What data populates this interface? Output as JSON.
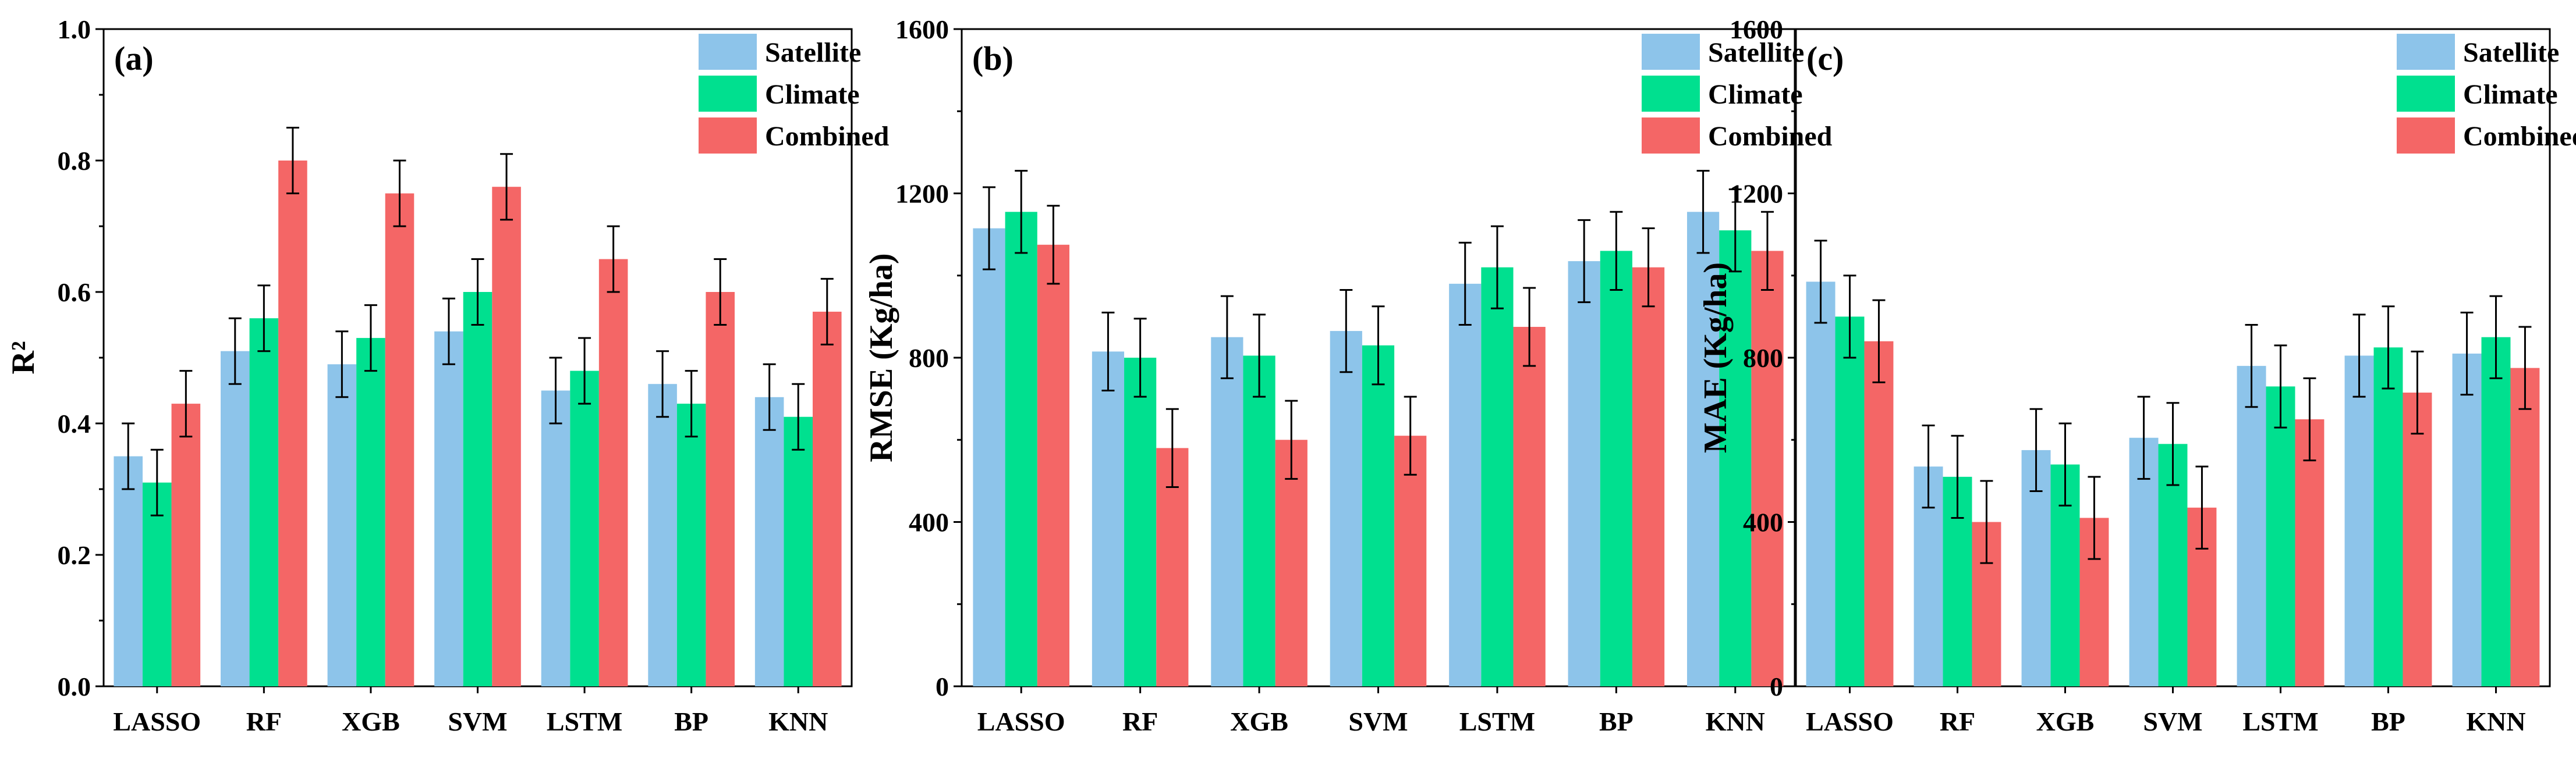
{
  "figure": {
    "colors": {
      "Satellite": "#8DC4EA",
      "Climate": "#00E08F",
      "Combined": "#F46666"
    },
    "legend_entries": [
      "Satellite",
      "Climate",
      "Combined"
    ]
  },
  "chart_data": [
    {
      "type": "bar",
      "panel": "(a)",
      "title": "",
      "xlabel": "",
      "ylabel": "R²",
      "ylim": [
        0,
        1.0
      ],
      "yticks": [
        0.0,
        0.2,
        0.4,
        0.6,
        0.8,
        1.0
      ],
      "ytick_labels": [
        "0.0",
        "0.2",
        "0.4",
        "0.6",
        "0.8",
        "1.0"
      ],
      "legend_position": "top-right",
      "categories": [
        "LASSO",
        "RF",
        "XGB",
        "SVM",
        "LSTM",
        "BP",
        "KNN"
      ],
      "series": [
        {
          "name": "Satellite",
          "values": [
            0.35,
            0.51,
            0.49,
            0.54,
            0.45,
            0.46,
            0.44
          ],
          "errors": [
            0.05,
            0.05,
            0.05,
            0.05,
            0.05,
            0.05,
            0.05
          ]
        },
        {
          "name": "Climate",
          "values": [
            0.31,
            0.56,
            0.53,
            0.6,
            0.48,
            0.43,
            0.41
          ],
          "errors": [
            0.05,
            0.05,
            0.05,
            0.05,
            0.05,
            0.05,
            0.05
          ]
        },
        {
          "name": "Combined",
          "values": [
            0.43,
            0.8,
            0.75,
            0.76,
            0.65,
            0.6,
            0.57
          ],
          "errors": [
            0.05,
            0.05,
            0.05,
            0.05,
            0.05,
            0.05,
            0.05
          ]
        }
      ]
    },
    {
      "type": "bar",
      "panel": "(b)",
      "title": "",
      "xlabel": "",
      "ylabel": "RMSE (Kg/ha)",
      "ylim": [
        0,
        1600
      ],
      "yticks": [
        0,
        400,
        800,
        1200,
        1600
      ],
      "ytick_labels": [
        "0",
        "400",
        "800",
        "1200",
        "1600"
      ],
      "legend_position": "top-right",
      "categories": [
        "LASSO",
        "RF",
        "XGB",
        "SVM",
        "LSTM",
        "BP",
        "KNN"
      ],
      "series": [
        {
          "name": "Satellite",
          "values": [
            1115,
            815,
            850,
            865,
            980,
            1035,
            1155
          ],
          "errors": [
            100,
            95,
            100,
            100,
            100,
            100,
            100
          ]
        },
        {
          "name": "Climate",
          "values": [
            1155,
            800,
            805,
            830,
            1020,
            1060,
            1110
          ],
          "errors": [
            100,
            95,
            100,
            95,
            100,
            95,
            100
          ]
        },
        {
          "name": "Combined",
          "values": [
            1075,
            580,
            600,
            610,
            875,
            1020,
            1060
          ],
          "errors": [
            95,
            95,
            95,
            95,
            95,
            95,
            95
          ]
        }
      ]
    },
    {
      "type": "bar",
      "panel": "(c)",
      "title": "",
      "xlabel": "",
      "ylabel": "MAE (Kg/ha)",
      "ylim": [
        0,
        1600
      ],
      "yticks": [
        0,
        400,
        800,
        1200,
        1600
      ],
      "ytick_labels": [
        "0",
        "400",
        "800",
        "1200",
        "1600"
      ],
      "legend_position": "top-right",
      "categories": [
        "LASSO",
        "RF",
        "XGB",
        "SVM",
        "LSTM",
        "BP",
        "KNN"
      ],
      "series": [
        {
          "name": "Satellite",
          "values": [
            985,
            535,
            575,
            605,
            780,
            805,
            810
          ],
          "errors": [
            100,
            100,
            100,
            100,
            100,
            100,
            100
          ]
        },
        {
          "name": "Climate",
          "values": [
            900,
            510,
            540,
            590,
            730,
            825,
            850
          ],
          "errors": [
            100,
            100,
            100,
            100,
            100,
            100,
            100
          ]
        },
        {
          "name": "Combined",
          "values": [
            840,
            400,
            410,
            435,
            650,
            715,
            775
          ],
          "errors": [
            100,
            100,
            100,
            100,
            100,
            100,
            100
          ]
        }
      ]
    }
  ]
}
